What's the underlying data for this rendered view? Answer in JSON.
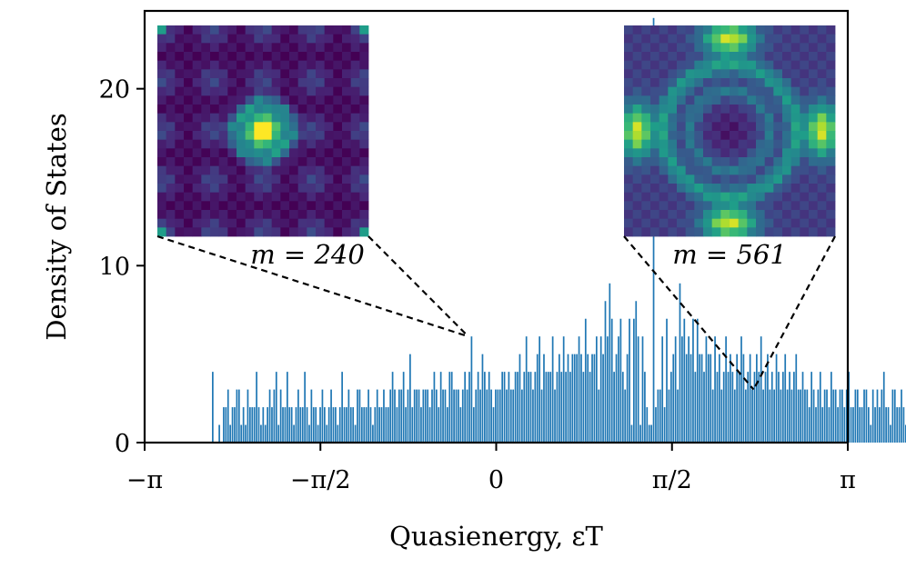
{
  "chart_data": {
    "type": "bar",
    "xlabel": "Quasienergy, εT",
    "ylabel": "Density of States",
    "xlim": [
      -3.14159,
      3.14159
    ],
    "ylim": [
      0,
      24.4
    ],
    "xticks": [
      {
        "value": -3.14159,
        "label": "−π"
      },
      {
        "value": -1.5708,
        "label": "−π/2"
      },
      {
        "value": 0,
        "label": "0"
      },
      {
        "value": 1.5708,
        "label": "π/2"
      },
      {
        "value": 3.14159,
        "label": "π"
      }
    ],
    "yticks": [
      {
        "value": 0,
        "label": "0"
      },
      {
        "value": 10,
        "label": "10"
      },
      {
        "value": 20,
        "label": "20"
      }
    ],
    "bar_color": "#1f77b4",
    "bin_width": 0.0196,
    "x_start": -2.54,
    "values": [
      4,
      0,
      0,
      1,
      0,
      2,
      2,
      3,
      1,
      2,
      2,
      3,
      3,
      1,
      2,
      1,
      3,
      2,
      2,
      2,
      4,
      2,
      1,
      2,
      1,
      2,
      3,
      2,
      3,
      4,
      1,
      3,
      2,
      2,
      4,
      2,
      2,
      1,
      2,
      3,
      2,
      2,
      4,
      2,
      1,
      3,
      2,
      2,
      1,
      2,
      3,
      2,
      1,
      2,
      3,
      2,
      2,
      1,
      2,
      4,
      2,
      2,
      3,
      2,
      2,
      1,
      3,
      3,
      2,
      2,
      2,
      3,
      2,
      1,
      2,
      3,
      2,
      2,
      3,
      2,
      2,
      3,
      4,
      3,
      2,
      3,
      3,
      4,
      2,
      3,
      5,
      2,
      3,
      3,
      3,
      2,
      3,
      3,
      3,
      2,
      3,
      4,
      3,
      2,
      4,
      3,
      3,
      2,
      4,
      4,
      3,
      3,
      3,
      2,
      3,
      4,
      3,
      4,
      6,
      2,
      3,
      4,
      3,
      5,
      4,
      3,
      4,
      3,
      2,
      3,
      3,
      3,
      4,
      4,
      3,
      4,
      3,
      3,
      4,
      4,
      5,
      3,
      4,
      6,
      4,
      4,
      3,
      4,
      5,
      6,
      3,
      5,
      4,
      4,
      4,
      6,
      3,
      4,
      5,
      4,
      6,
      4,
      5,
      4,
      5,
      5,
      5,
      6,
      5,
      4,
      7,
      5,
      4,
      5,
      5,
      6,
      3,
      6,
      5,
      8,
      6,
      9,
      7,
      4,
      5,
      6,
      7,
      4,
      3,
      5,
      7,
      1,
      7,
      8,
      6,
      1,
      6,
      4,
      2,
      1,
      1,
      24,
      2,
      3,
      3,
      6,
      2,
      7,
      3,
      4,
      5,
      6,
      3,
      9,
      6,
      7,
      5,
      6,
      5,
      7,
      4,
      7,
      5,
      5,
      4,
      6,
      5,
      5,
      3,
      6,
      4,
      5,
      3,
      4,
      6,
      4,
      5,
      4,
      3,
      5,
      4,
      6,
      5,
      3,
      4,
      5,
      3,
      4,
      5,
      4,
      6,
      3,
      4,
      5,
      3,
      4,
      3,
      5,
      4,
      3,
      4,
      5,
      3,
      4,
      3,
      4,
      5,
      3,
      3,
      4,
      3,
      3,
      2,
      4,
      3,
      2,
      3,
      4,
      2,
      3,
      3,
      2,
      4,
      3,
      3,
      2,
      3,
      3,
      2,
      3,
      4,
      2,
      2,
      3,
      3,
      2,
      2,
      3,
      3,
      2,
      1,
      3,
      2,
      3,
      2,
      3,
      4,
      2,
      2,
      1,
      3,
      3,
      2,
      2,
      3,
      2,
      1,
      2,
      3,
      2,
      2,
      3,
      2,
      2,
      1,
      2,
      3,
      2,
      1,
      2,
      2,
      1,
      3,
      1,
      2,
      2,
      3,
      2,
      1,
      1,
      2,
      3,
      1,
      1,
      3,
      1,
      2,
      4
    ],
    "insets": [
      {
        "label": "m = 240",
        "source_x": -0.25,
        "source_y": 6,
        "colormap": "viridis",
        "pattern": "center-bright"
      },
      {
        "label": "m = 561",
        "source_x": 2.3,
        "source_y": 3,
        "colormap": "viridis",
        "pattern": "ring"
      }
    ]
  }
}
